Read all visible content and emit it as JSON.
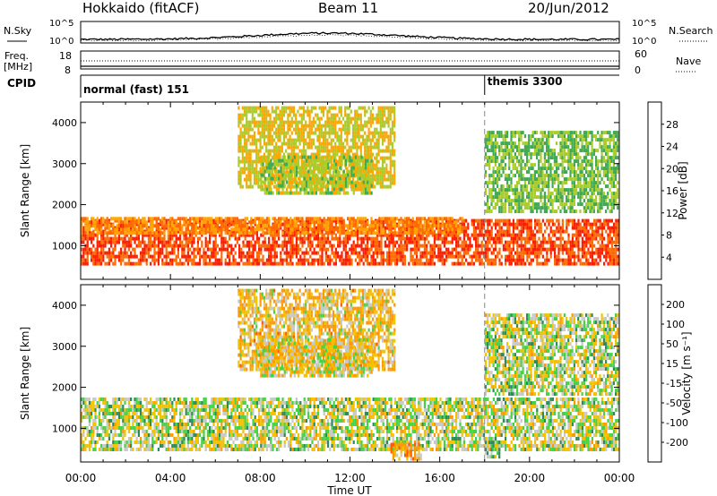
{
  "header": {
    "station": "Hokkaido (fitACF)",
    "beam": "Beam 11",
    "date": "20/Jun/2012"
  },
  "status_panels": {
    "nsky_label": "N.Sky",
    "nsearch_label": "N.Search",
    "freq_label": "Freq.",
    "freq_unit": "[MHz]",
    "nave_label": "Nave",
    "cpid_label": "CPID",
    "noise_ticks": [
      "10^5",
      "10^0"
    ],
    "freq_ticks": [
      "18",
      "8"
    ],
    "nave_ticks": [
      "60",
      "0"
    ],
    "cpid_segments": [
      {
        "name": "normal (fast) 151",
        "start_hour": 0,
        "end_hour": 18
      },
      {
        "name": "themis 3300",
        "start_hour": 18,
        "end_hour": 24
      }
    ]
  },
  "time_axis": {
    "label": "Time UT",
    "ticks": [
      "00:00",
      "04:00",
      "08:00",
      "12:00",
      "16:00",
      "20:00",
      "00:00"
    ]
  },
  "range_axis": {
    "label": "Slant Range [km]",
    "ticks": [
      "1000",
      "2000",
      "3000",
      "4000"
    ]
  },
  "power_colorbar": {
    "label": "Power [dB]",
    "ticks": [
      "4",
      "8",
      "12",
      "16",
      "20",
      "24",
      "28"
    ]
  },
  "velocity_colorbar": {
    "label": "Velocity [m s⁻¹]",
    "ticks": [
      "200",
      "100",
      "50",
      "15",
      "-15",
      "-50",
      "-100",
      "-200"
    ]
  },
  "chart_data": [
    {
      "type": "heatmap",
      "title": "Power",
      "xlabel": "Time UT",
      "ylabel": "Slant Range [km]",
      "xlim": [
        0,
        24
      ],
      "ylim": [
        180,
        4500
      ],
      "mode_change_hour": 18,
      "colorscale": {
        "boundaries": [
          0,
          4,
          8,
          12,
          16,
          20,
          24,
          28,
          32
        ],
        "colors": [
          "#0000ff",
          "#2a52c8",
          "#3a8a8a",
          "#3faa52",
          "#aacc2a",
          "#ffa500",
          "#ff6a00",
          "#ff1a00"
        ]
      },
      "features": [
        {
          "name": "main band",
          "hours": [
            0,
            24
          ],
          "range_km": [
            500,
            1650
          ],
          "power_db": 28
        },
        {
          "name": "upper band",
          "hours": [
            0,
            17
          ],
          "range_km": [
            1300,
            1700
          ],
          "power_db": 24
        },
        {
          "name": "arc upper",
          "hours": [
            7,
            14
          ],
          "range_km": [
            2400,
            4400
          ],
          "power_db": 20
        },
        {
          "name": "arc lower",
          "hours": [
            8,
            13
          ],
          "range_km": [
            2200,
            3200
          ],
          "power_db": 18
        },
        {
          "name": "late scatter",
          "hours": [
            18,
            24
          ],
          "range_km": [
            1800,
            3800
          ],
          "power_db": 16
        }
      ]
    },
    {
      "type": "heatmap",
      "title": "Velocity",
      "xlabel": "Time UT",
      "ylabel": "Slant Range [km]",
      "xlim": [
        0,
        24
      ],
      "ylim": [
        180,
        4500
      ],
      "mode_change_hour": 18,
      "colorscale": {
        "boundaries": [
          -250,
          -200,
          -100,
          -50,
          -15,
          15,
          50,
          100,
          200,
          250
        ],
        "colors": [
          "#ff0000",
          "#ff5a00",
          "#ff9900",
          "#f2c200",
          "#c8c8c8",
          "#46d246",
          "#2d8a5a",
          "#2d6ea8",
          "#1a1aa8"
        ]
      },
      "features": [
        {
          "name": "ground scatter band",
          "hours": [
            0,
            24
          ],
          "range_km": [
            400,
            1750
          ],
          "velocity_ms": 0
        },
        {
          "name": "arc upper",
          "hours": [
            7,
            14
          ],
          "range_km": [
            2400,
            4400
          ],
          "velocity_ms": -40
        },
        {
          "name": "arc lower",
          "hours": [
            8,
            13
          ],
          "range_km": [
            2200,
            3200
          ],
          "velocity_ms": -20
        },
        {
          "name": "late scatter",
          "hours": [
            18,
            24
          ],
          "range_km": [
            1800,
            3800
          ],
          "velocity_ms": 0
        },
        {
          "name": "negative patch",
          "hours": [
            13.8,
            15.2
          ],
          "range_km": [
            250,
            650
          ],
          "velocity_ms": -60
        },
        {
          "name": "positive patch",
          "hours": [
            18,
            18.7
          ],
          "range_km": [
            300,
            700
          ],
          "velocity_ms": 30
        }
      ]
    }
  ]
}
